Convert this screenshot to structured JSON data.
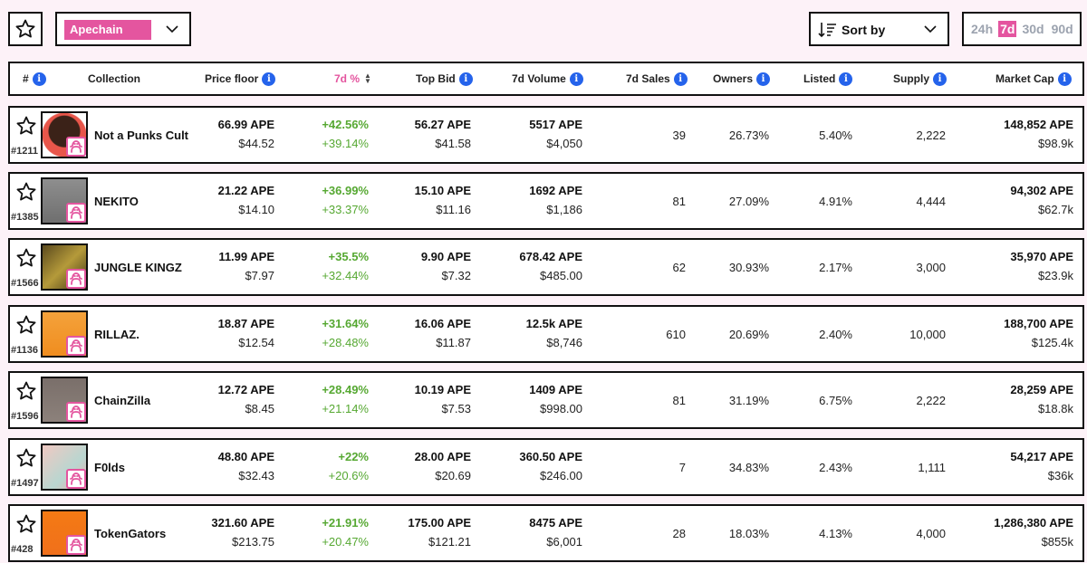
{
  "toolbar": {
    "chain": "Apechain",
    "sort_label": "Sort by",
    "periods": [
      "24h",
      "7d",
      "30d",
      "90d"
    ],
    "active_period": "7d"
  },
  "headers": {
    "rank": "#",
    "collection": "Collection",
    "price_floor": "Price floor",
    "change": "7d %",
    "top_bid": "Top Bid",
    "volume": "7d Volume",
    "sales": "7d Sales",
    "owners": "Owners",
    "listed": "Listed",
    "supply": "Supply",
    "market_cap": "Market Cap"
  },
  "rows": [
    {
      "rank": "#1211",
      "name": "Not a Punks Cult",
      "floor_ape": "66.99 APE",
      "floor_usd": "$44.52",
      "chg_ape": "+42.56%",
      "chg_usd": "+39.14%",
      "bid_ape": "56.27 APE",
      "bid_usd": "$41.58",
      "vol_ape": "5517 APE",
      "vol_usd": "$4,050",
      "sales": "39",
      "owners": "26.73%",
      "listed": "5.40%",
      "supply": "2,222",
      "mcap_ape": "148,852 APE",
      "mcap_usd": "$98.9k"
    },
    {
      "rank": "#1385",
      "name": "NEKITO",
      "floor_ape": "21.22 APE",
      "floor_usd": "$14.10",
      "chg_ape": "+36.99%",
      "chg_usd": "+33.37%",
      "bid_ape": "15.10 APE",
      "bid_usd": "$11.16",
      "vol_ape": "1692 APE",
      "vol_usd": "$1,186",
      "sales": "81",
      "owners": "27.09%",
      "listed": "4.91%",
      "supply": "4,444",
      "mcap_ape": "94,302 APE",
      "mcap_usd": "$62.7k"
    },
    {
      "rank": "#1566",
      "name": "JUNGLE KINGZ",
      "floor_ape": "11.99 APE",
      "floor_usd": "$7.97",
      "chg_ape": "+35.5%",
      "chg_usd": "+32.44%",
      "bid_ape": "9.90 APE",
      "bid_usd": "$7.32",
      "vol_ape": "678.42 APE",
      "vol_usd": "$485.00",
      "sales": "62",
      "owners": "30.93%",
      "listed": "2.17%",
      "supply": "3,000",
      "mcap_ape": "35,970 APE",
      "mcap_usd": "$23.9k"
    },
    {
      "rank": "#1136",
      "name": "RILLAZ.",
      "floor_ape": "18.87 APE",
      "floor_usd": "$12.54",
      "chg_ape": "+31.64%",
      "chg_usd": "+28.48%",
      "bid_ape": "16.06 APE",
      "bid_usd": "$11.87",
      "vol_ape": "12.5k APE",
      "vol_usd": "$8,746",
      "sales": "610",
      "owners": "20.69%",
      "listed": "2.40%",
      "supply": "10,000",
      "mcap_ape": "188,700 APE",
      "mcap_usd": "$125.4k"
    },
    {
      "rank": "#1596",
      "name": "ChainZilla",
      "floor_ape": "12.72 APE",
      "floor_usd": "$8.45",
      "chg_ape": "+28.49%",
      "chg_usd": "+21.14%",
      "bid_ape": "10.19 APE",
      "bid_usd": "$7.53",
      "vol_ape": "1409 APE",
      "vol_usd": "$998.00",
      "sales": "81",
      "owners": "31.19%",
      "listed": "6.75%",
      "supply": "2,222",
      "mcap_ape": "28,259 APE",
      "mcap_usd": "$18.8k"
    },
    {
      "rank": "#1497",
      "name": "F0lds",
      "floor_ape": "48.80 APE",
      "floor_usd": "$32.43",
      "chg_ape": "+22%",
      "chg_usd": "+20.6%",
      "bid_ape": "28.00 APE",
      "bid_usd": "$20.69",
      "vol_ape": "360.50 APE",
      "vol_usd": "$246.00",
      "sales": "7",
      "owners": "34.83%",
      "listed": "2.43%",
      "supply": "1,111",
      "mcap_ape": "54,217 APE",
      "mcap_usd": "$36k"
    },
    {
      "rank": "#428",
      "name": "TokenGators",
      "floor_ape": "321.60 APE",
      "floor_usd": "$213.75",
      "chg_ape": "+21.91%",
      "chg_usd": "+20.47%",
      "bid_ape": "175.00 APE",
      "bid_usd": "$121.21",
      "vol_ape": "8475 APE",
      "vol_usd": "$6,001",
      "sales": "28",
      "owners": "18.03%",
      "listed": "4.13%",
      "supply": "4,000",
      "mcap_ape": "1,286,380 APE",
      "mcap_usd": "$855k"
    }
  ],
  "icons": {
    "favorite": "star-icon",
    "info": "info-icon",
    "chain_badge": "ape-chain-badge-icon",
    "sort": "sort-lines-icon",
    "dropdown": "chevron-down-icon"
  },
  "colors": {
    "accent": "#e4559f",
    "positive": "#56a832",
    "info": "#2563eb",
    "page_bg": "#fdf2f8"
  }
}
